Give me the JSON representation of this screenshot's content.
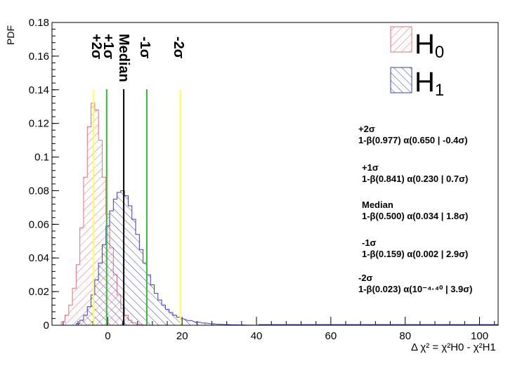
{
  "chart_data": {
    "type": "histogram",
    "title": "",
    "xlabel": "Δ χ² = χ²H0 - χ²H1",
    "ylabel": "PDF",
    "xlim": [
      -15,
      105
    ],
    "ylim": [
      0,
      0.18
    ],
    "x_ticks": [
      0,
      20,
      40,
      60,
      80,
      100
    ],
    "y_ticks": [
      0,
      0.02,
      0.04,
      0.06,
      0.08,
      0.1,
      0.12,
      0.14,
      0.16,
      0.18
    ],
    "y_tick_labels": [
      "0",
      "0.02",
      "0.04",
      "0.06",
      "0.08",
      "0.1",
      "0.12",
      "0.14",
      "0.16",
      "0.18"
    ],
    "grid": false,
    "legend_position": "top-right",
    "series": [
      {
        "name": "H0",
        "color": "#e8707a",
        "bin_width": 1,
        "x": [
          -12,
          -11,
          -10,
          -9,
          -8,
          -7,
          -6,
          -5,
          -4,
          -3,
          -2,
          -1,
          0,
          1,
          2,
          3,
          4,
          5,
          6,
          7,
          8,
          9,
          10
        ],
        "values": [
          0.002,
          0.006,
          0.012,
          0.022,
          0.036,
          0.058,
          0.088,
          0.118,
          0.132,
          0.128,
          0.11,
          0.088,
          0.066,
          0.046,
          0.03,
          0.018,
          0.01,
          0.006,
          0.003,
          0.0015,
          0.0008,
          0.0003,
          0.0001
        ]
      },
      {
        "name": "H1",
        "color": "#3b3bcc",
        "bin_width": 1,
        "x": [
          -8,
          -7,
          -6,
          -5,
          -4,
          -3,
          -2,
          -1,
          0,
          1,
          2,
          3,
          4,
          5,
          6,
          7,
          8,
          9,
          10,
          11,
          12,
          13,
          14,
          15,
          16,
          17,
          18,
          19,
          20,
          22,
          24,
          26,
          28,
          30,
          32,
          34,
          36,
          38,
          40
        ],
        "values": [
          0.001,
          0.003,
          0.006,
          0.011,
          0.018,
          0.027,
          0.037,
          0.048,
          0.059,
          0.068,
          0.075,
          0.079,
          0.08,
          0.077,
          0.071,
          0.063,
          0.054,
          0.045,
          0.037,
          0.03,
          0.024,
          0.019,
          0.015,
          0.012,
          0.0095,
          0.0075,
          0.006,
          0.0048,
          0.0038,
          0.0028,
          0.0019,
          0.0013,
          0.0009,
          0.0006,
          0.0004,
          0.0003,
          0.0002,
          0.00012,
          7e-05
        ]
      }
    ],
    "vertical_lines": [
      {
        "label": "+2σ",
        "x": -3.8,
        "color": "#ffff55"
      },
      {
        "label": "+1σ",
        "x": -0.3,
        "color": "#33bb33"
      },
      {
        "label": "Median",
        "x": 4.3,
        "color": "#000000"
      },
      {
        "label": "-1σ",
        "x": 10.5,
        "color": "#33bb33"
      },
      {
        "label": "-2σ",
        "x": 19.5,
        "color": "#ffff55"
      }
    ],
    "annotations": [
      {
        "head": "+2σ",
        "line": "1-β(0.977)  α(0.650 | -0.4σ)"
      },
      {
        "head": "+1σ",
        "line": "1-β(0.841)  α(0.230 | 0.7σ)"
      },
      {
        "head": "Median",
        "line": "1-β(0.500)  α(0.034 | 1.8σ)"
      },
      {
        "head": "-1σ",
        "line": "1-β(0.159)  α(0.002 | 2.9σ)"
      },
      {
        "head": "-2σ",
        "line": "1-β(0.023)  α(10⁻⁴·⁴⁰ | 3.9σ)"
      }
    ],
    "legend": [
      "H0",
      "H1"
    ]
  }
}
